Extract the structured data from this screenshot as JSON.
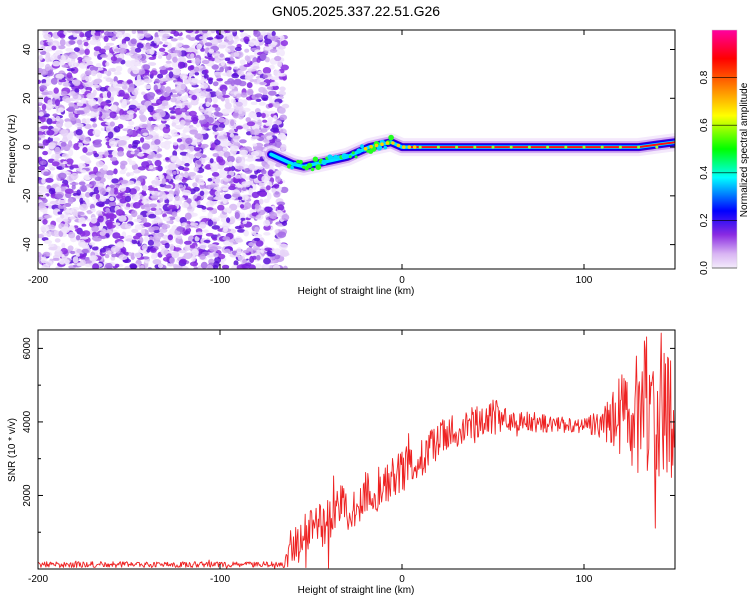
{
  "figure_title": "GN05.2025.337.22.51.G26",
  "chart_data": [
    {
      "type": "heatmap",
      "xlabel": "Height of straight line (km)",
      "ylabel": "Frequency (Hz)",
      "xlim": [
        -200,
        150
      ],
      "ylim": [
        -50,
        48
      ],
      "x_ticks": [
        -200,
        -100,
        0,
        100
      ],
      "y_ticks": [
        -40,
        -20,
        0,
        20,
        40
      ],
      "noise_region_x": [
        -200,
        -64
      ],
      "signal_track": {
        "x": [
          -72,
          -66,
          -60,
          -54,
          -48,
          -42,
          -36,
          -30,
          -24,
          -18,
          -12,
          -6,
          0,
          5,
          10,
          20,
          40,
          60,
          80,
          100,
          110,
          120,
          130,
          140,
          150
        ],
        "y": [
          -3,
          -5,
          -7,
          -8,
          -7,
          -6,
          -5,
          -4,
          -2,
          0,
          1,
          2,
          0,
          0,
          0,
          0,
          0,
          0,
          0,
          0,
          0,
          0,
          0,
          1,
          2
        ]
      },
      "colorbar": {
        "label": "Normalized spectral amplitude",
        "range": [
          0,
          1
        ],
        "ticks": [
          "0.0",
          "0.2",
          "0.4",
          "0.6",
          "0.8"
        ],
        "colors": [
          "#f4ecfb",
          "#d8b4f3",
          "#8a2be2",
          "#0000ff",
          "#00ffff",
          "#00ff00",
          "#ffff00",
          "#ff8000",
          "#ff0000",
          "#ff00a0"
        ]
      }
    },
    {
      "type": "line",
      "xlabel": "Height of straight line (km)",
      "ylabel": "SNR (10 * v/v)",
      "xlim": [
        -200,
        150
      ],
      "ylim": [
        0,
        6500
      ],
      "x_ticks": [
        -200,
        -100,
        0,
        100
      ],
      "y_ticks": [
        2000,
        4000,
        6000
      ],
      "series": [
        {
          "name": "SNR",
          "color": "#ee2222",
          "envelope": {
            "x": [
              -200,
              -65,
              -58,
              -50,
              -40,
              -30,
              -20,
              -10,
              0,
              10,
              20,
              30,
              40,
              50,
              60,
              70,
              80,
              90,
              100,
              110,
              115,
              120,
              125,
              130,
              135,
              140,
              145,
              150
            ],
            "y": [
              120,
              120,
              700,
              1100,
              1400,
              1700,
              2000,
              2300,
              2700,
              3000,
              3500,
              3800,
              4000,
              4100,
              4050,
              4000,
              3950,
              3900,
              3900,
              3950,
              4050,
              4100,
              4200,
              4300,
              4400,
              4300,
              4100,
              4000
            ]
          },
          "noise_amplitude": {
            "x": [
              -200,
              -65,
              -58,
              -40,
              -20,
              0,
              20,
              40,
              50,
              60,
              100,
              110,
              120,
              130,
              140,
              150
            ],
            "y": [
              80,
              80,
              600,
              700,
              650,
              600,
              500,
              450,
              550,
              300,
              200,
              400,
              1200,
              1800,
              2500,
              1500
            ]
          }
        }
      ]
    }
  ]
}
